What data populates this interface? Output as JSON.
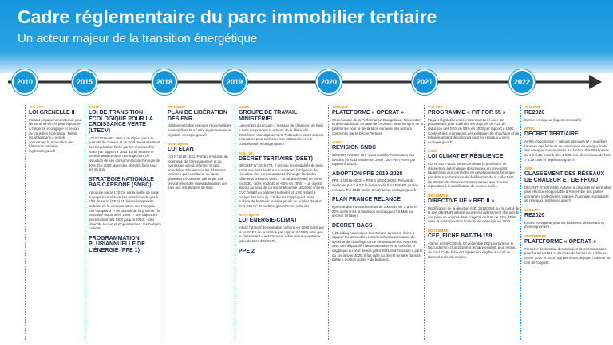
{
  "header": {
    "title": "Cadre réglementaire du parc immobilier tertiaire",
    "subtitle": "Un acteur majeur de la transition énergétique"
  },
  "timeline": {
    "years": [
      "2010",
      "2015",
      "2018",
      "2019",
      "2020",
      "2021",
      "2022"
    ]
  },
  "columns": [
    {
      "entries": [
        {
          "date": "JUILLET",
          "title": "LOI GRENELLE II",
          "text": "Portant engagement national pour l'environnement et pour répondre à l'urgence écologique et besoin de transition écologique. Définit les obligations à remplir concernant la rénovation des bâtiments tertiaires. legifrance.gouv.fr"
        }
      ]
    },
    {
      "entries": [
        {
          "date": "AOÛT",
          "title": "LOI DE TRANSITION ÉCOLOGIQUE POUR LA CROISSANCE VERTE (LTECV)",
          "text": "LOI N°2015-992. Vise à multiplier par 5 la quantité de chaleur et de froid renouvelable et de récupération livrée par les réseaux d'ici 2030, par rapport à 2012. La loi incarne le secteur tertiaire dans une trajectoire de réduction de ses consommations d'énergie de 60% d'ici 2050, avec des objectifs fixés tous les 10 ans."
        },
        {
          "title": "STRATÉGIE NATIONALE BAS CARBONE (SNBC)",
          "text": "Introduite par la LTECV, est la feuille de route du pays pour réduire ses émissions de gaz à effet de serre (GES) et réduire l'empreinte carbone de la consommation des Français. Elle comprend : - un objectif de long terme : la neutralité carbone en 2050 ; - une trajectoire de réduction des GES jusqu'à 2050 ; - des objectifs à court et moyen termes : les budgets carbone"
        },
        {
          "title": "PROGRAMMATION PLURIANNUELLE DE L'ÉNERGIE (PPE 1)"
        }
      ]
    },
    {
      "entries": [
        {
          "date": "OCTOBRE",
          "title": "PLAN DE LIBÉRATION DES ENR",
          "text": "Déploiement des énergies renouvelables en simplifiant leur cadre réglementaire et législatif. ecologie.gouv.fr"
        },
        {
          "date": "NOVEMBRE",
          "title": "LOI ÉLAN",
          "text": "LOI N°2018-1021. Portant évolution du logement, de l'aménagement et du numérique vise à réformer le droit immobilier. Elle associe les bâtiments tertiaires qui constituent un vaste gisement d'économie d'énergie. Elle prévoit d'étendre l'individualisation des frais aux installations de froid."
        }
      ]
    },
    {
      "entries": [
        {
          "date": "MARS",
          "title": "GROUPE DE TRAVAIL MINISTÉRIEL",
          "text": "Lancement du groupe « réseaux de chaleur et de froid » avec les principaux acteurs de la filière afin d'accélérer leur déploiement. Publication de 25 actions prioritaires pour renforcer leur attractivité et leur compétitivité. ecologie.gouv.fr"
        },
        {
          "date": "JUILLET",
          "title": "DÉCRET TERTIAIRE (DEET)",
          "text": "DÉCRET N°2019-771. Il précise les modalités de mise en œuvre de la loi ÉLAN concernant l'obligation de réduction des consommations d'énergie finale des bâtiments tertiaires visés : - un objectif relatif de -40% en 2030, -50% en 2040 et -60% en 2050 ; - un objectif absolu au seuil de consommation fixé selon les critères CVC (relatif au bâtiment tertiaire) et USE (relatif à l'usage des locaux). Ce décret s'applique à toute surface de bâtiment tertiaire privés ou publics de plus de 1 000 m² de surface (plancher ou cumulée)."
        },
        {
          "date": "NOVEMBRE",
          "title": "LOI ÉNERGIE-CLIMAT",
          "text": "Inscrit l'objectif de neutralité carbone en 2050 (créé par la loi ÉGES de la France par rapport à 1990) ainsi que le classement « automatique » des réseaux vertueux (plus de 50% d'EnR&R)."
        },
        {
          "title": "PPE 2"
        }
      ]
    },
    {
      "entries": [
        {
          "date": "JANVIER",
          "title": "PLATEFORME « OPERAT »",
          "text": "Observatoire de la Performance Énergétique, Rénovation et des Actions du Tertiaire de l'ADEME. Mise en ligne de la plateforme pour la déclaration annuelle des acteurs concernés par le Décret Tertiaire."
        },
        {
          "date": "AVRIL",
          "title": "RÉVISION SNBC",
          "text": "DÉCRET N°2020-457. Vient modifier l'estimation des besoins en froid tertiaire en 2050 : 30 TWh (+68% par rapport à 2015)."
        },
        {
          "title": "ADOPTION PPE 2019-2028",
          "text": "PPE 1 (2016-2023) + PPE 2 (2024-2028). Prévoit de multiplier par 2 à 2,5 la livraison de froid EnR&R par les réseaux d'ici 2028 (selon 2 scénarios) ecologie.gouv.fr"
        },
        {
          "title": "PLAN FRANCE RELANCE",
          "text": "Il prévoit des investissements de 100 Mds sur 2 ans, et 30% serviront à la transition écologique (7,5 Mds au secteur tertiaire)."
        },
        {
          "title": "DÉCRET BACS",
          "text": "(1)Building Automation and Control Systems. Il vise à équiper les immeubles tertiaires dont la puissance du système de chauffage ou de climatisation est >290 kW avec des dispositifs d'automatisation et de contrôle. Il s'applique au neuf depuis juillet 2021 et à l'existant à partir du 1er janvier 2025. Il fait suite au décret tertiaire dans la partie « gestion active » du bâtiment."
        }
      ]
    },
    {
      "entries": [
        {
          "date": "JUILLET",
          "title": "PROGRAMME « FIT FOR 55 »",
          "text": "Paquet législatif européen transsectoriel avec 12 propositions pour atteindre les objectifs de l'UE de réduction des GES de 55% en 2030 par rapport à 1990. Contient des orientations des politiques de chauffage et de refroidissement décarbonés pour les réseaux à venir. ecologie.gouv.fr"
        },
        {
          "date": "AOÛT",
          "title": "LOI CLIMAT ET RÉSILIENCE",
          "text": "LOI N°2021-1104. Vient compléter la procédure de classement automatique des réseaux en prévoyant l'application d'un périmètre de développement prioritaire par défaut en l'absence de délibération de la collectivité. Restriction du classement automatique aux réseaux répondant à la qualification de service public."
        },
        {
          "date": "DÉCEMBRE",
          "title": "DIRECTIVE UE « RED II »",
          "text": "Modification de la directive (UE) 2018/2001 sur le calcul de la part d'EnR&R utilisée pour le refroidissement afin qu'elle soit prise en compte dans l'objectif de l'UE de 32% d'EnR dans la consommation finale brute d'énergie en 2030."
        },
        {
          "date": "DÉCEMBRE",
          "title": "CEE, FICHE BAT-TH-159",
          "text": "40ème arrêté CEE du 17 décembre 2021 portant sur le raccordement d'un bâtiment tertiaire existant à un réseau de froid. Cette fiche est également éligible au coût de raccord au fonds chaleur."
        }
      ]
    },
    {
      "entries": [
        {
          "date": "JANVIER",
          "title": "RE2020",
          "text": "Entrée en vigueur (logements neufs)."
        },
        {
          "date": "AVRIL",
          "title": "DÉCRET TERTIAIRE",
          "text": "Arrêté d'application « Valeurs absolues IV » modifiant l'annexe des facteurs de conversion en énergie finale des énergies consommées. Le facteur des RFU passe de 1 à 0,25, c'est-à-dire 1 kWh issu d'un réseau de froid = 0,25 kWh ef. legifrance.gouv.fr"
        },
        {
          "date": "JUIN",
          "title": "CLASSEMENT DES RÉSEAUX DE CHALEUR ET DE FROID",
          "text": "DÉCRET N°2022-666. Achève le dispositif en le rendant plus efficace et opposable à l'ensemble des parties prenantes (collectivités, maîtres d'ouvrage, exploitants de réseaux). legifrance.gouv.fr"
        },
        {
          "date": "JUILLET",
          "title": "RE2020",
          "text": "Entrée en vigueur pour les bâtiments de bureaux et d'enseignement."
        },
        {
          "date": "SEPTEMBRE",
          "title": "PLATEFORME « OPERAT »",
          "text": "Première déclaration des données de consommation pour l'année 2021 et du choix de l'année de référence (entre 2020 et 2019) qui permettra de juger l'atteinte ou non de l'objectif."
        }
      ]
    }
  ]
}
